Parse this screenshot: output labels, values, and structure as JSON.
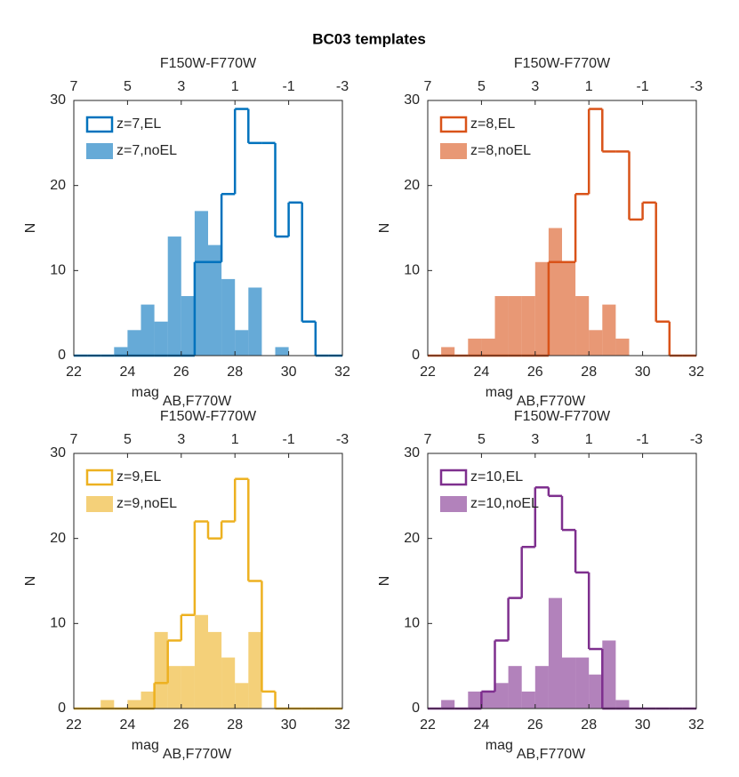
{
  "title": "BC03 templates",
  "chart_data": [
    {
      "type": "histogram",
      "xlabel": "mag",
      "xlabel_sub": "AB,F770W",
      "ylabel": "N",
      "x2label": "F150W-F770W",
      "bins": [
        22,
        22.5,
        23,
        23.5,
        24,
        24.5,
        25,
        25.5,
        26,
        26.5,
        27,
        27.5,
        28,
        28.5,
        29,
        29.5,
        30,
        30.5,
        31,
        31.5,
        32
      ],
      "xlim": [
        22,
        32
      ],
      "xticks": [
        22,
        24,
        26,
        28,
        30,
        32
      ],
      "x2lim": [
        7,
        -3
      ],
      "x2ticks": [
        7,
        5,
        3,
        1,
        -1,
        -3
      ],
      "ylim": [
        0,
        30
      ],
      "yticks": [
        0,
        10,
        20,
        30
      ],
      "legend": "upper left",
      "series": [
        {
          "name": "z=7,EL",
          "color": "#0072bd",
          "style": "step",
          "values": [
            0,
            0,
            0,
            0,
            0,
            0,
            0,
            0,
            0,
            11,
            11,
            19,
            29,
            25,
            25,
            14,
            18,
            4,
            0,
            0
          ]
        },
        {
          "name": "z=7,noEL",
          "color": "#0072bd",
          "style": "filled",
          "values": [
            0,
            0,
            0,
            1,
            3,
            6,
            4,
            14,
            7,
            17,
            13,
            9,
            3,
            8,
            0,
            1,
            0,
            0,
            0,
            0
          ]
        }
      ]
    },
    {
      "type": "histogram",
      "xlabel": "mag",
      "xlabel_sub": "AB,F770W",
      "ylabel": "N",
      "x2label": "F150W-F770W",
      "bins": [
        22,
        22.5,
        23,
        23.5,
        24,
        24.5,
        25,
        25.5,
        26,
        26.5,
        27,
        27.5,
        28,
        28.5,
        29,
        29.5,
        30,
        30.5,
        31,
        31.5,
        32
      ],
      "xlim": [
        22,
        32
      ],
      "xticks": [
        22,
        24,
        26,
        28,
        30,
        32
      ],
      "x2lim": [
        7,
        -3
      ],
      "x2ticks": [
        7,
        5,
        3,
        1,
        -1,
        -3
      ],
      "ylim": [
        0,
        30
      ],
      "yticks": [
        0,
        10,
        20,
        30
      ],
      "legend": "upper left",
      "series": [
        {
          "name": "z=8,EL",
          "color": "#d95319",
          "style": "step",
          "values": [
            0,
            0,
            0,
            0,
            0,
            0,
            0,
            0,
            0,
            11,
            11,
            19,
            29,
            24,
            24,
            16,
            18,
            4,
            0,
            0
          ]
        },
        {
          "name": "z=8,noEL",
          "color": "#d95319",
          "style": "filled",
          "values": [
            0,
            1,
            0,
            2,
            2,
            7,
            7,
            7,
            11,
            15,
            11,
            7,
            3,
            6,
            2,
            0,
            0,
            0,
            0,
            0
          ]
        }
      ]
    },
    {
      "type": "histogram",
      "xlabel": "mag",
      "xlabel_sub": "AB,F770W",
      "ylabel": "N",
      "x2label": "F150W-F770W",
      "bins": [
        22,
        22.5,
        23,
        23.5,
        24,
        24.5,
        25,
        25.5,
        26,
        26.5,
        27,
        27.5,
        28,
        28.5,
        29,
        29.5,
        30,
        30.5,
        31,
        31.5,
        32
      ],
      "xlim": [
        22,
        32
      ],
      "xticks": [
        22,
        24,
        26,
        28,
        30,
        32
      ],
      "x2lim": [
        7,
        -3
      ],
      "x2ticks": [
        7,
        5,
        3,
        1,
        -1,
        -3
      ],
      "ylim": [
        0,
        30
      ],
      "yticks": [
        0,
        10,
        20,
        30
      ],
      "legend": "upper left",
      "series": [
        {
          "name": "z=9,EL",
          "color": "#edb120",
          "style": "step",
          "values": [
            0,
            0,
            0,
            0,
            0,
            0,
            3,
            8,
            11,
            22,
            20,
            22,
            27,
            15,
            2,
            0,
            0,
            0,
            0,
            0
          ]
        },
        {
          "name": "z=9,noEL",
          "color": "#edb120",
          "style": "filled",
          "values": [
            0,
            0,
            1,
            0,
            1,
            2,
            9,
            5,
            5,
            11,
            9,
            6,
            3,
            9,
            0,
            0,
            0,
            0,
            0,
            0
          ]
        }
      ]
    },
    {
      "type": "histogram",
      "xlabel": "mag",
      "xlabel_sub": "AB,F770W",
      "ylabel": "N",
      "x2label": "F150W-F770W",
      "bins": [
        22,
        22.5,
        23,
        23.5,
        24,
        24.5,
        25,
        25.5,
        26,
        26.5,
        27,
        27.5,
        28,
        28.5,
        29,
        29.5,
        30,
        30.5,
        31,
        31.5,
        32
      ],
      "xlim": [
        22,
        32
      ],
      "xticks": [
        22,
        24,
        26,
        28,
        30,
        32
      ],
      "x2lim": [
        7,
        -3
      ],
      "x2ticks": [
        7,
        5,
        3,
        1,
        -1,
        -3
      ],
      "ylim": [
        0,
        30
      ],
      "yticks": [
        0,
        10,
        20,
        30
      ],
      "legend": "upper left",
      "series": [
        {
          "name": "z=10,EL",
          "color": "#7e2f8e",
          "style": "step",
          "values": [
            0,
            0,
            0,
            0,
            2,
            8,
            13,
            19,
            26,
            25,
            21,
            16,
            7,
            0,
            0,
            0,
            0,
            0,
            0,
            0
          ]
        },
        {
          "name": "z=10,noEL",
          "color": "#7e2f8e",
          "style": "filled",
          "values": [
            0,
            1,
            0,
            2,
            2,
            3,
            5,
            2,
            5,
            13,
            6,
            6,
            4,
            8,
            1,
            0,
            0,
            0,
            0,
            0
          ]
        }
      ]
    }
  ]
}
